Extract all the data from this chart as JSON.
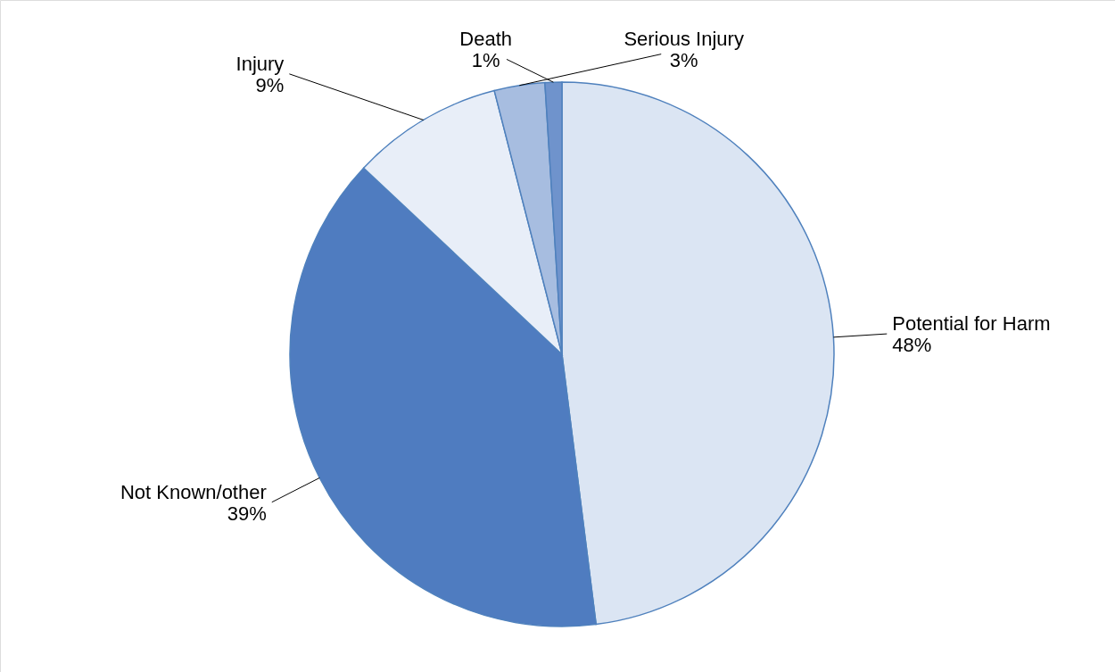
{
  "chart_data": {
    "type": "pie",
    "categories": [
      "Potential for Harm",
      "Not Known/other",
      "Injury",
      "Serious Injury",
      "Death"
    ],
    "values": [
      48,
      39,
      9,
      3,
      1
    ],
    "value_labels": [
      "48%",
      "39%",
      "9%",
      "3%",
      "1%"
    ],
    "colors": [
      "#dbe5f3",
      "#4f7cc0",
      "#e8eef8",
      "#a7bde0",
      "#6f93cc"
    ]
  }
}
